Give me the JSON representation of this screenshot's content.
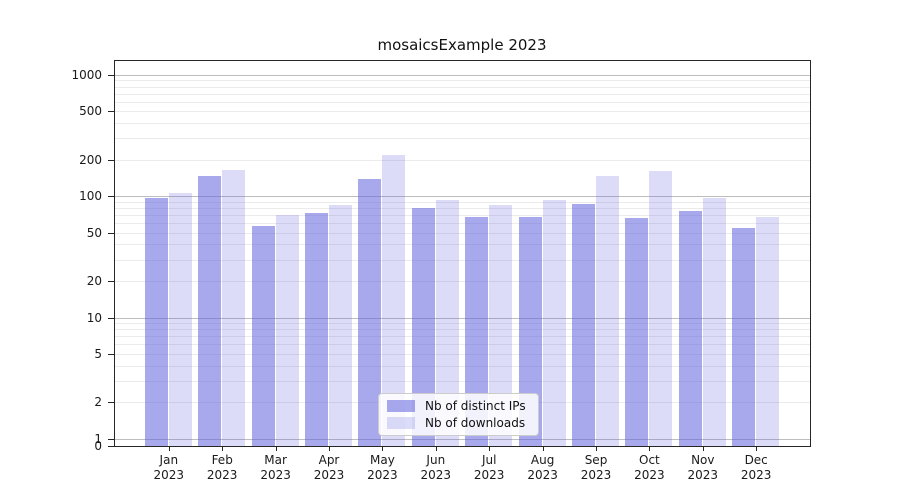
{
  "title": "mosaicsExample 2023",
  "chart_data": {
    "type": "bar",
    "title": "mosaicsExample 2023",
    "categories": [
      "Jan",
      "Feb",
      "Mar",
      "Apr",
      "May",
      "Jun",
      "Jul",
      "Aug",
      "Sep",
      "Oct",
      "Nov",
      "Dec"
    ],
    "category_year": "2023",
    "series": [
      {
        "name": "Nb of distinct IPs",
        "color": "rgba(102,102,224,0.57)",
        "values": [
          96,
          148,
          57,
          73,
          138,
          80,
          67,
          67,
          86,
          66,
          75,
          55
        ]
      },
      {
        "name": "Nb of downloads",
        "color": "rgba(102,102,224,0.23)",
        "values": [
          107,
          165,
          70,
          85,
          220,
          93,
          84,
          93,
          147,
          162,
          97,
          67
        ]
      }
    ],
    "yscale": "symlog",
    "yticks": [
      0,
      1,
      2,
      5,
      10,
      20,
      50,
      100,
      200,
      500,
      1000
    ],
    "ylim": [
      0,
      1300
    ],
    "grid": "on",
    "legend_position": "lower center",
    "colors": {
      "major_grid": "#bdbdbd",
      "minor_grid": "#ebebeb",
      "frame": "#262626",
      "bar_dark": "rgba(102,102,224,0.57)",
      "bar_light": "rgba(102,102,224,0.23)"
    }
  }
}
